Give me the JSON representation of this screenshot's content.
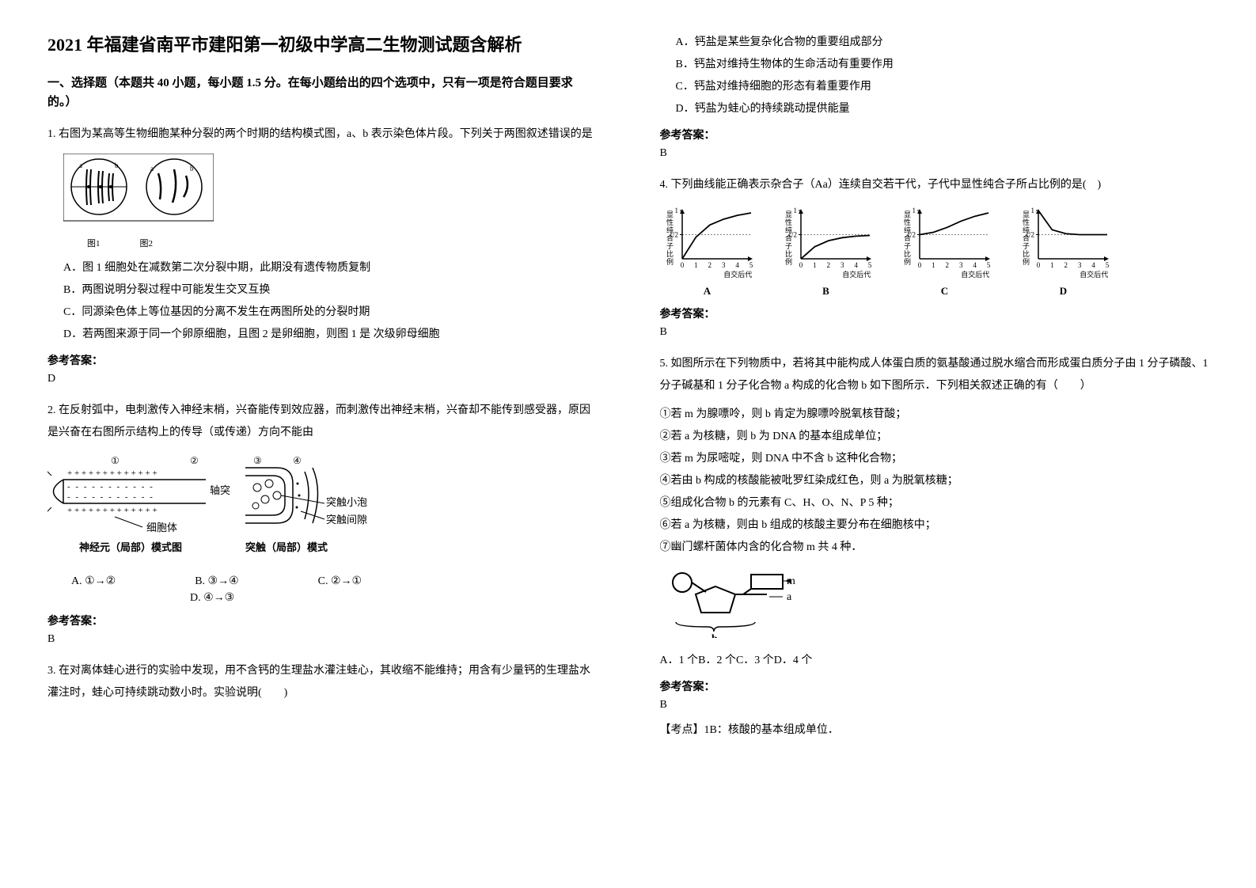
{
  "title": "2021 年福建省南平市建阳第一初级中学高二生物测试题含解析",
  "section_header": "一、选择题（本题共 40 小题，每小题 1.5 分。在每小题给出的四个选项中，只有一项是符合题目要求的。）",
  "q1": {
    "text": "1. 右图为某高等生物细胞某种分裂的两个时期的结构模式图，a、b 表示染色体片段。下列关于两图叙述错误的是",
    "fig_labels": [
      "图1",
      "图2"
    ],
    "options": {
      "A": "A．图 1 细胞处在减数第二次分裂中期，此期没有遗传物质复制",
      "B": "B．两图说明分裂过程中可能发生交叉互换",
      "C": "C．同源染色体上等位基因的分离不发生在两图所处的分裂时期",
      "D": "D．若两图来源于同一个卵原细胞，且图 2 是卵细胞，则图 1 是 次级卵母细胞"
    },
    "answer_label": "参考答案：",
    "answer": "D"
  },
  "q2": {
    "text": "2. 在反射弧中，电刺激传入神经末梢，兴奋能传到效应器，而刺激传出神经末梢，兴奋却不能传到感受器，原因是兴奋在右图所示结构上的传导（或传递）方向不能由",
    "neuron_labels": {
      "axon": "轴突",
      "cell_body": "细胞体",
      "neuron_title": "神经元（局部）模式图",
      "vesicle": "突触小泡",
      "cleft": "突触间隙",
      "synapse_title": "突触（局部）模式"
    },
    "options": {
      "A": "A. ①→②",
      "B": "B. ③→④",
      "C": "C. ②→①",
      "D": "D. ④→③"
    },
    "answer_label": "参考答案：",
    "answer": "B"
  },
  "q3": {
    "text": "3. 在对离体蛙心进行的实验中发现，用不含钙的生理盐水灌注蛙心，其收缩不能维持；用含有少量钙的生理盐水灌注时，蛙心可持续跳动数小时。实验说明(　　)",
    "options": {
      "A": "A．钙盐是某些复杂化合物的重要组成部分",
      "B": "B．钙盐对维持生物体的生命活动有重要作用",
      "C": "C．钙盐对维持细胞的形态有着重要作用",
      "D": "D．钙盐为蛙心的持续跳动提供能量"
    },
    "answer_label": "参考答案：",
    "answer": "B"
  },
  "q4": {
    "text": "4. 下列曲线能正确表示杂合子（Aa）连续自交若干代，子代中显性纯合子所占比例的是(　)",
    "chart": {
      "y_label": "显性纯合子比例",
      "y_ticks": [
        "1",
        "1/2"
      ],
      "x_label": "自交后代",
      "x_ticks": [
        "0",
        "1",
        "2",
        "3",
        "4",
        "5"
      ],
      "labels": [
        "A",
        "B",
        "C",
        "D"
      ],
      "line_color": "#000000",
      "axis_color": "#000000",
      "bg_color": "#ffffff",
      "width": 120,
      "height": 95,
      "curves": {
        "A": [
          [
            0,
            0
          ],
          [
            1,
            0.45
          ],
          [
            2,
            0.7
          ],
          [
            3,
            0.82
          ],
          [
            4,
            0.9
          ],
          [
            5,
            0.95
          ]
        ],
        "B": [
          [
            0,
            0
          ],
          [
            1,
            0.25
          ],
          [
            2,
            0.375
          ],
          [
            3,
            0.4375
          ],
          [
            4,
            0.46875
          ],
          [
            5,
            0.484
          ]
        ],
        "C": [
          [
            0,
            0.5
          ],
          [
            1,
            0.55
          ],
          [
            2,
            0.65
          ],
          [
            3,
            0.78
          ],
          [
            4,
            0.88
          ],
          [
            5,
            0.95
          ]
        ],
        "D": [
          [
            0,
            1
          ],
          [
            1,
            0.6
          ],
          [
            2,
            0.52
          ],
          [
            3,
            0.5
          ],
          [
            4,
            0.5
          ],
          [
            5,
            0.5
          ]
        ]
      }
    },
    "answer_label": "参考答案：",
    "answer": "B"
  },
  "q5": {
    "text": "5. 如图所示在下列物质中，若将其中能构成人体蛋白质的氨基酸通过脱水缩合而形成蛋白质分子由 1 分子磷酸、1 分子碱基和 1 分子化合物 a 构成的化合物 b 如下图所示．下列相关叙述正确的有（　　）",
    "statements": [
      "①若 m 为腺嘌呤，则 b 肯定为腺嘌呤脱氧核苷酸；",
      "②若 a 为核糖，则 b 为 DNA 的基本组成单位；",
      "③若 m 为尿嘧啶，则 DNA 中不含 b 这种化合物；",
      "④若由 b 构成的核酸能被吡罗红染成红色，则 a 为脱氧核糖；",
      "⑤组成化合物 b 的元素有 C、H、O、N、P 5 种；",
      "⑥若 a 为核糖，则由 b 组成的核酸主要分布在细胞核中；",
      "⑦幽门螺杆菌体内含的化合物 m 共 4 种．"
    ],
    "compound_labels": {
      "m": "m",
      "a": "a",
      "b": "b"
    },
    "options_text": "A．1 个B．2 个C．3 个D．4 个",
    "answer_label": "参考答案：",
    "answer": "B",
    "analysis": "【考点】1B：核酸的基本组成单位．"
  }
}
